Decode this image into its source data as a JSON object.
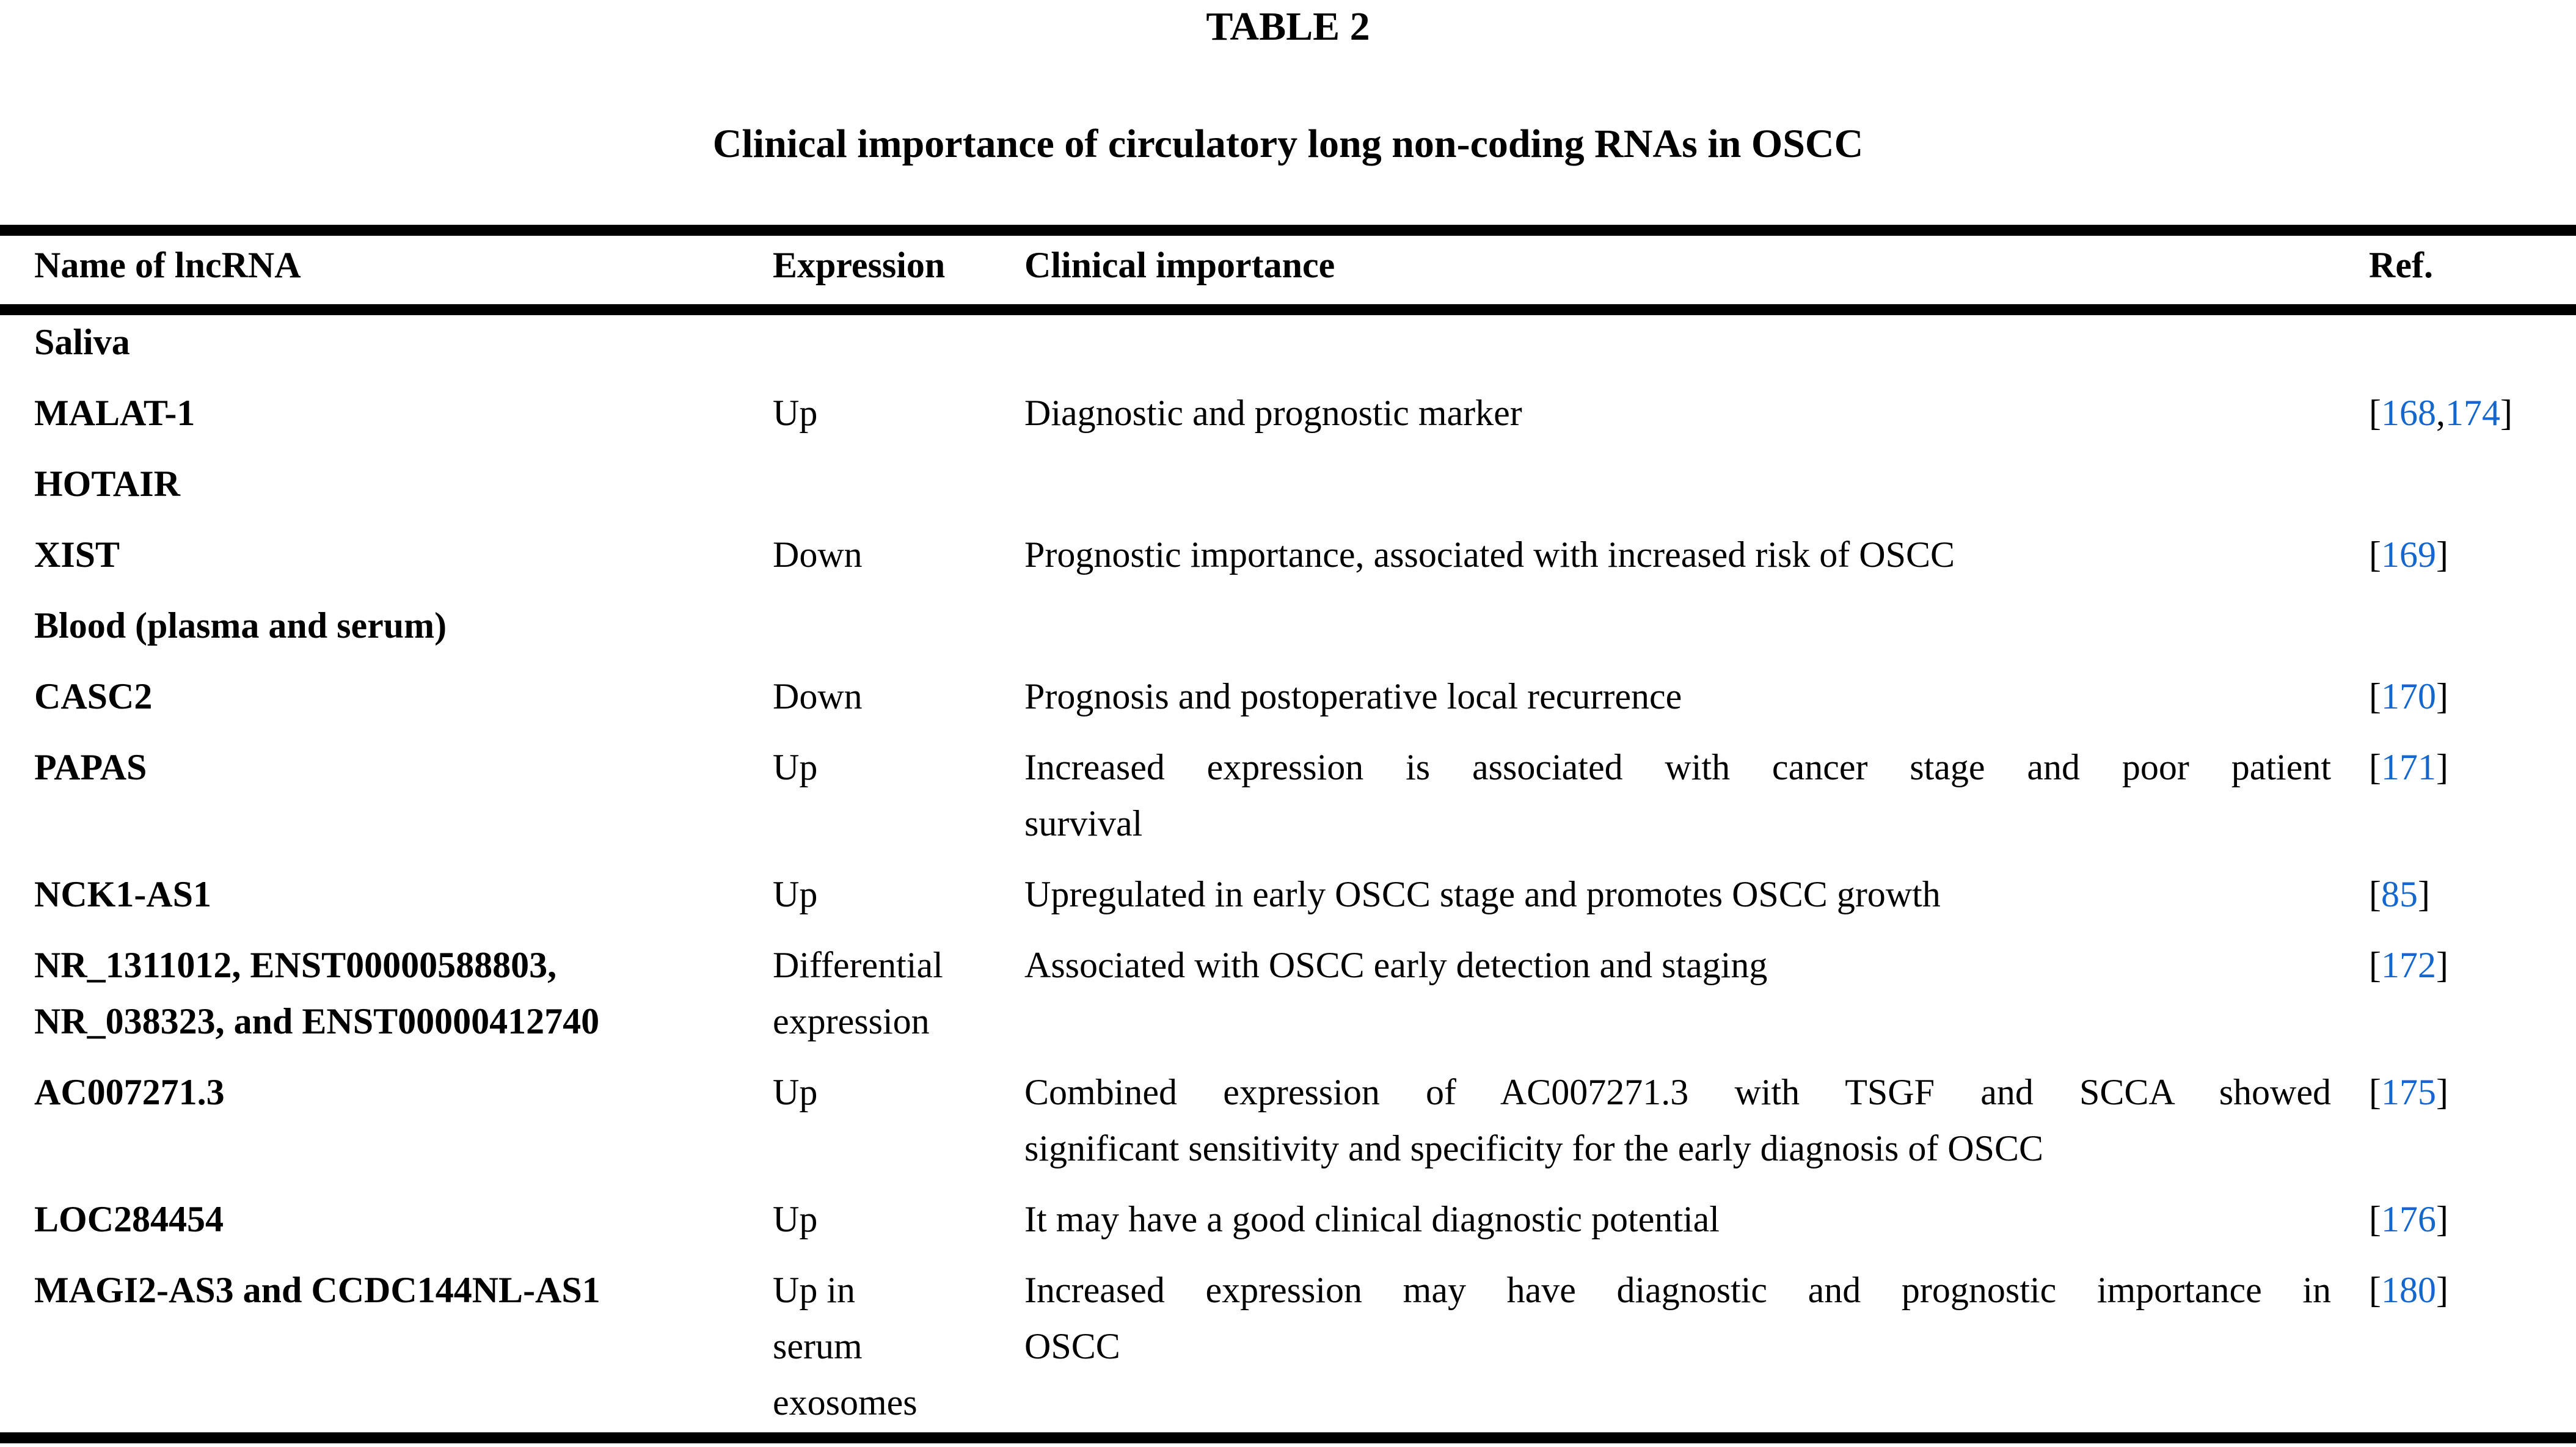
{
  "title": "TABLE 2",
  "subtitle": "Clinical importance of circulatory long non-coding RNAs in OSCC",
  "link_color": "#1467CE",
  "table": {
    "columns": [
      "Name of lncRNA",
      "Expression",
      "Clinical importance",
      "Ref."
    ],
    "rows": [
      {
        "section": true,
        "name_lines": [
          "Saliva"
        ]
      },
      {
        "name_lines": [
          "MALAT-1"
        ],
        "expression_lines": [
          "Up"
        ],
        "importance_lines": [
          "Diagnostic and prognostic marker"
        ],
        "ref_numbers": [
          "168",
          "174"
        ]
      },
      {
        "name_lines": [
          "HOTAIR"
        ],
        "expression_lines": [],
        "importance_lines": [],
        "ref_numbers": []
      },
      {
        "name_lines": [
          "XIST"
        ],
        "expression_lines": [
          "Down"
        ],
        "importance_lines": [
          "Prognostic importance, associated with increased risk of OSCC"
        ],
        "ref_numbers": [
          "169"
        ]
      },
      {
        "section": true,
        "name_lines": [
          "Blood (plasma and serum)"
        ]
      },
      {
        "name_lines": [
          "CASC2"
        ],
        "expression_lines": [
          "Down"
        ],
        "importance_lines": [
          "Prognosis and postoperative local recurrence"
        ],
        "ref_numbers": [
          "170"
        ]
      },
      {
        "name_lines": [
          "PAPAS"
        ],
        "expression_lines": [
          "Up"
        ],
        "importance_lines": [
          "Increased expression is associated with cancer stage and poor patient",
          "survival"
        ],
        "ref_numbers": [
          "171"
        ]
      },
      {
        "name_lines": [
          "NCK1-AS1"
        ],
        "expression_lines": [
          "Up"
        ],
        "importance_lines": [
          "Upregulated in early OSCC stage and promotes OSCC growth"
        ],
        "ref_numbers": [
          "85"
        ]
      },
      {
        "name_lines": [
          "NR_1311012, ENST00000588803,",
          "NR_038323, and ENST00000412740"
        ],
        "expression_lines": [
          "Differential",
          "expression"
        ],
        "importance_lines": [
          "Associated with OSCC early detection and staging"
        ],
        "ref_numbers": [
          "172"
        ]
      },
      {
        "name_lines": [
          "AC007271.3"
        ],
        "expression_lines": [
          "Up"
        ],
        "importance_lines": [
          "Combined expression of AC007271.3 with TSGF and SCCA showed",
          "significant sensitivity and specificity for the early diagnosis of OSCC"
        ],
        "ref_numbers": [
          "175"
        ]
      },
      {
        "name_lines": [
          "LOC284454"
        ],
        "expression_lines": [
          "Up"
        ],
        "importance_lines": [
          "It may have a good clinical diagnostic potential"
        ],
        "ref_numbers": [
          "176"
        ]
      },
      {
        "name_lines": [
          "MAGI2-AS3 and CCDC144NL-AS1"
        ],
        "expression_lines": [
          "Up in",
          "serum",
          "exosomes"
        ],
        "importance_lines": [
          "Increased expression may have diagnostic and prognostic importance in",
          "OSCC"
        ],
        "ref_numbers": [
          "180"
        ]
      }
    ]
  }
}
